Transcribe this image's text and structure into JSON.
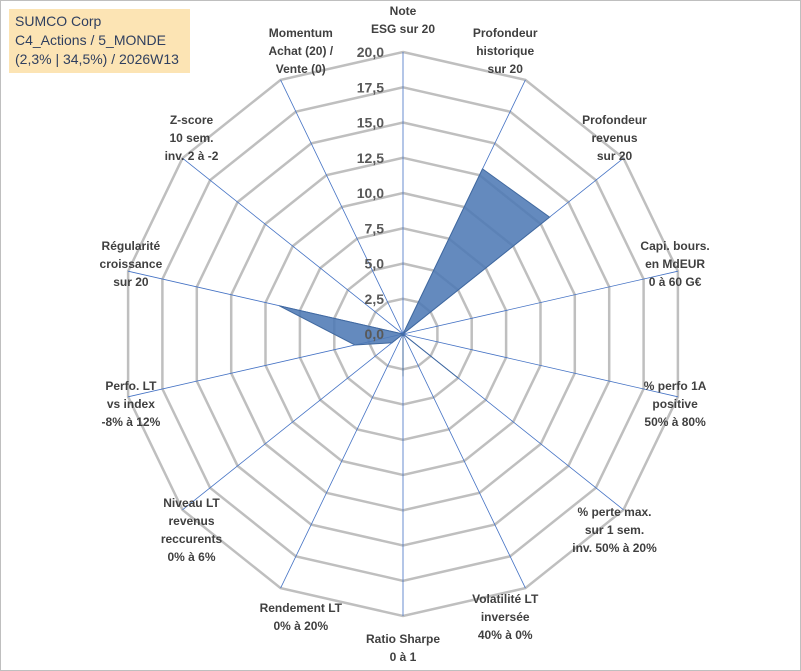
{
  "header": {
    "line1": "SUMCO Corp",
    "line2": "C4_Actions / 5_MONDE",
    "line3": "(2,3% | 34,5%) / 2026W13"
  },
  "chart_data": {
    "type": "radar",
    "rmin": 0,
    "rmax": 20,
    "ticks": [
      "0,0",
      "2,5",
      "5,0",
      "7,5",
      "10,0",
      "12,5",
      "15,0",
      "17,5",
      "20,0"
    ],
    "axes": [
      {
        "label": [
          "Note",
          "ESG sur 20"
        ],
        "value": 0
      },
      {
        "label": [
          "Profondeur",
          "historique",
          "sur 20"
        ],
        "value": 13.0
      },
      {
        "label": [
          "Profondeur",
          "revenus",
          "sur 20"
        ],
        "value": 13.3
      },
      {
        "label": [
          "Capi. bours.",
          "en MdEUR",
          "0 à 60 G€"
        ],
        "value": 0
      },
      {
        "label": [
          "% perfo 1A",
          "positive",
          "50% à 80%"
        ],
        "value": 0
      },
      {
        "label": [
          "% perte max.",
          "sur 1 sem.",
          "inv. 50% à 20%"
        ],
        "value": 5.0
      },
      {
        "label": [
          "Volatilité LT",
          "inversée",
          "40% à 0%"
        ],
        "value": 0
      },
      {
        "label": [
          "Ratio Sharpe",
          "0 à 1"
        ],
        "value": 3.0
      },
      {
        "label": [
          "Rendement LT",
          "0% à 20%"
        ],
        "value": 0
      },
      {
        "label": [
          "Niveau LT",
          "revenus",
          "reccurents",
          "0% à 6%"
        ],
        "value": 1.0
      },
      {
        "label": [
          "Perfo. LT",
          "vs index",
          "-8% à 12%"
        ],
        "value": 3.5
      },
      {
        "label": [
          "Régularité",
          "croissance",
          "sur 20"
        ],
        "value": 9.0
      },
      {
        "label": [
          "Z-score",
          "10 sem.",
          "inv. 2 à -2"
        ],
        "value": 0
      },
      {
        "label": [
          "Momentum",
          "Achat (20) /",
          "Vente (0)"
        ],
        "value": 0
      }
    ],
    "grid": true,
    "colors": {
      "fill": "#4e7ab5",
      "grid": "#bfbfbf",
      "spoke": "#4472c4"
    }
  }
}
